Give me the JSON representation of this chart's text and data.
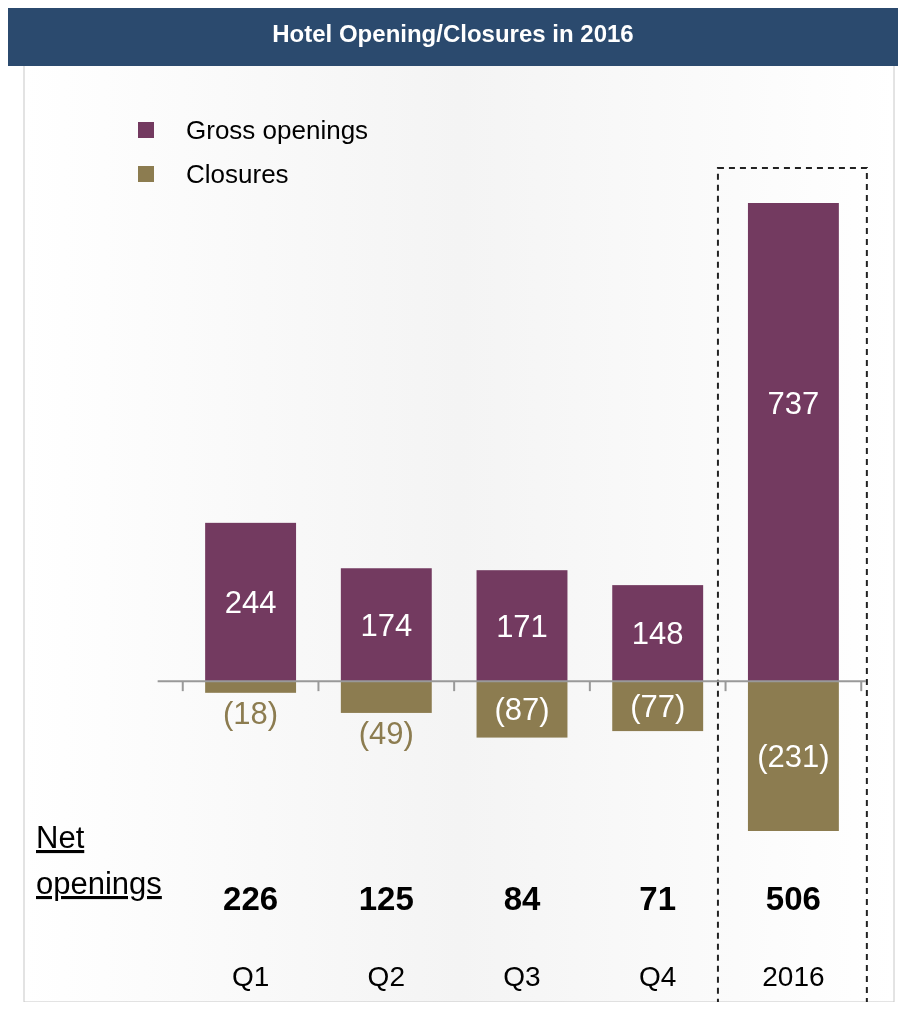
{
  "chart_data": {
    "type": "bar",
    "title": "Hotel Opening/Closures in 2016",
    "categories": [
      "Q1",
      "Q2",
      "Q3",
      "Q4",
      "2016"
    ],
    "stacked": true,
    "series": [
      {
        "name": "Gross openings",
        "color": "#733a60",
        "values": [
          244,
          174,
          171,
          148,
          737
        ],
        "value_labels": [
          "244",
          "174",
          "171",
          "148",
          "737"
        ]
      },
      {
        "name": "Closures",
        "color": "#8c7c50",
        "values": [
          -18,
          -49,
          -87,
          -77,
          -231
        ],
        "value_labels": [
          "(18)",
          "(49)",
          "(87)",
          "(77)",
          "(231)"
        ]
      }
    ],
    "annotations": [
      "Net openings",
      "226",
      "125",
      "84",
      "71",
      "506"
    ],
    "legend": "top left"
  }
}
